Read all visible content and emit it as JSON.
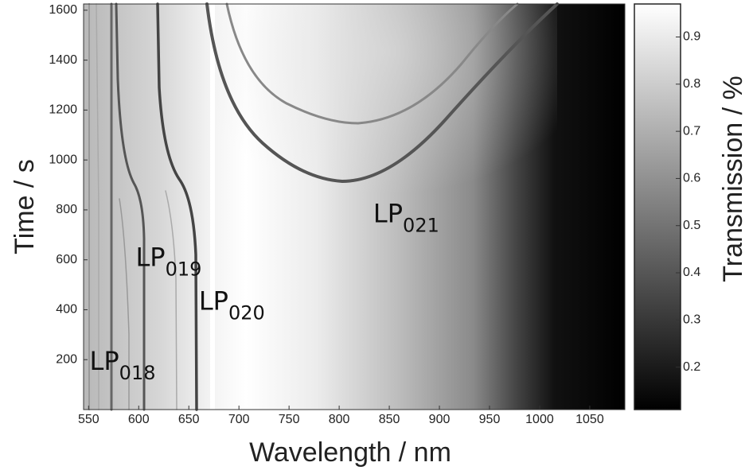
{
  "chart_data": {
    "type": "heatmap",
    "x_label": "Wavelength / nm",
    "y_label": "Time / s",
    "colorbar_label": "Transmission / %",
    "xlim": [
      545,
      1085
    ],
    "xticks": [
      550,
      600,
      650,
      700,
      750,
      800,
      850,
      900,
      950,
      1000,
      1050
    ],
    "ylim": [
      0,
      1625
    ],
    "yticks": [
      200,
      400,
      600,
      800,
      1000,
      1200,
      1400,
      1600
    ],
    "clim": [
      0.11,
      0.97
    ],
    "cticks": [
      0.2,
      0.3,
      0.4,
      0.5,
      0.6,
      0.7,
      0.8,
      0.9
    ],
    "colormap": "gray",
    "annotations": [
      {
        "label": "LP",
        "subscript": "018",
        "x": 551,
        "y": 160
      },
      {
        "label": "LP",
        "subscript": "019",
        "x": 597,
        "y": 575
      },
      {
        "label": "LP",
        "subscript": "020",
        "x": 660,
        "y": 400
      },
      {
        "label": "LP",
        "subscript": "021",
        "x": 834,
        "y": 750
      }
    ]
  }
}
